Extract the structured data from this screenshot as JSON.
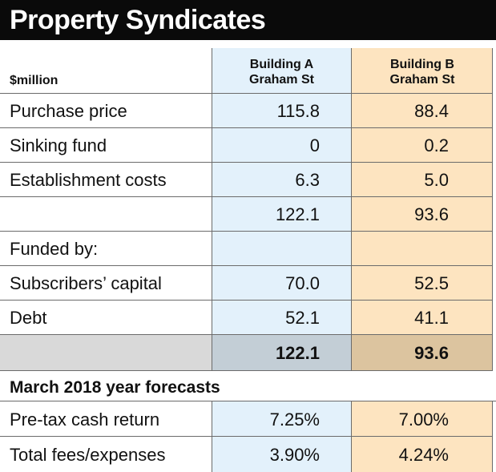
{
  "title": "Property Syndicates",
  "unit_label": "$million",
  "columns": {
    "a_line1": "Building A",
    "a_line2": "Graham St",
    "b_line1": "Building B",
    "b_line2": "Graham St"
  },
  "rows": [
    {
      "label": "Purchase price",
      "a": "115.8",
      "b": "88.4"
    },
    {
      "label": "Sinking fund",
      "a": "0",
      "b": "0.2"
    },
    {
      "label": "Establishment costs",
      "a": "6.3",
      "b": "5.0"
    },
    {
      "label": "",
      "a": "122.1",
      "b": "93.6"
    },
    {
      "label": "Funded by:",
      "a": "",
      "b": ""
    },
    {
      "label": "Subscribers’ capital",
      "a": "70.0",
      "b": "52.5"
    },
    {
      "label": "Debt",
      "a": "52.1",
      "b": "41.1"
    }
  ],
  "total": {
    "a": "122.1",
    "b": "93.6"
  },
  "forecast_heading": "March 2018 year forecasts",
  "forecast_rows": [
    {
      "label": "Pre-tax cash return",
      "a": "7.25%",
      "b": "7.00%"
    },
    {
      "label": "Total fees/expenses",
      "a": "3.90%",
      "b": "4.24%"
    }
  ],
  "colors": {
    "building_a": "#e3f1fb",
    "building_b": "#fde4c0",
    "title_bg": "#0a0a0a"
  }
}
